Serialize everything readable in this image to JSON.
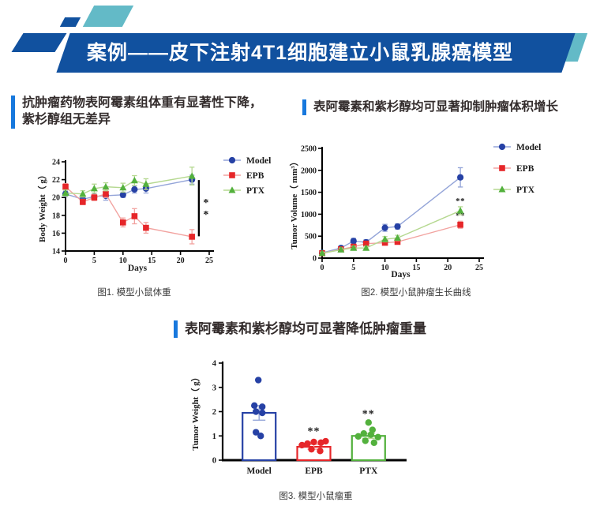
{
  "header": {
    "title": "案例——皮下注射4T1细胞建立小鼠乳腺癌模型",
    "banner_color": "#11519f",
    "accent_teal": "#63bac7",
    "section_bar_color": "#1778dd"
  },
  "sections": {
    "left": {
      "title": "抗肿瘤药物表阿霉素组体重有显著性下降，紫杉醇组无差异",
      "caption": "图1. 模型小鼠体重"
    },
    "right": {
      "title": "表阿霉素和紫杉醇均可显著抑制肿瘤体积增长",
      "caption": "图2. 模型小鼠肿瘤生长曲线"
    },
    "bottom": {
      "title": "表阿霉素和紫杉醇均可显著降低肿瘤重量",
      "caption": "图3. 模型小鼠瘤重"
    }
  },
  "chart_data": [
    {
      "type": "line",
      "xlabel": "Days",
      "ylabel": "Body Weight（ g）",
      "xlim": [
        0,
        25
      ],
      "ylim": [
        14,
        24
      ],
      "x_ticks": [
        0,
        5,
        10,
        15,
        20,
        25
      ],
      "y_ticks": [
        14,
        16,
        18,
        20,
        22,
        24
      ],
      "x": [
        0,
        3,
        5,
        7,
        10,
        12,
        14,
        22
      ],
      "legend_position": "top-right",
      "series": [
        {
          "name": "Model",
          "marker": "circle",
          "marker_color": "#2641a5",
          "line_color": "#93a4d8",
          "values": [
            20.4,
            19.8,
            20.1,
            20.2,
            20.3,
            20.9,
            21.0,
            22.0
          ],
          "errors": [
            0.3,
            0.4,
            0.4,
            0.5,
            0.3,
            0.4,
            0.5,
            0.5
          ]
        },
        {
          "name": "EPB",
          "marker": "square",
          "marker_color": "#e62629",
          "line_color": "#f2a3a0",
          "values": [
            21.2,
            19.5,
            20.0,
            20.4,
            17.2,
            17.9,
            16.6,
            15.6
          ],
          "errors": [
            0.35,
            0.3,
            0.35,
            0.4,
            0.5,
            0.85,
            0.6,
            0.8
          ]
        },
        {
          "name": "PTX",
          "marker": "triangle",
          "marker_color": "#53b13d",
          "line_color": "#b5d890",
          "values": [
            20.5,
            20.4,
            21.0,
            21.2,
            21.1,
            21.9,
            21.5,
            22.4
          ],
          "errors": [
            0.35,
            0.35,
            0.5,
            0.45,
            0.5,
            0.55,
            0.6,
            1.0
          ]
        }
      ],
      "annotation": {
        "type": "significance-bracket",
        "x": 23.2,
        "y1": 21.95,
        "y2": 15.65,
        "label": "**"
      }
    },
    {
      "type": "line",
      "xlabel": "Days",
      "ylabel": "Tumor Volume（ mm³）",
      "xlim": [
        0,
        25
      ],
      "ylim": [
        0,
        2500
      ],
      "x_ticks": [
        0,
        5,
        10,
        15,
        20,
        25
      ],
      "y_ticks": [
        0,
        500,
        1000,
        1500,
        2000,
        2500
      ],
      "x": [
        0,
        3,
        5,
        7,
        10,
        12,
        22
      ],
      "legend_position": "top-right",
      "series": [
        {
          "name": "Model",
          "marker": "circle",
          "marker_color": "#2641a5",
          "line_color": "#93a4d8",
          "values": [
            120,
            230,
            390,
            360,
            690,
            720,
            1840
          ],
          "errors": [
            40,
            50,
            60,
            60,
            80,
            60,
            220
          ],
          "sig_label": ""
        },
        {
          "name": "EPB",
          "marker": "square",
          "marker_color": "#e62629",
          "line_color": "#f2a3a0",
          "values": [
            110,
            200,
            260,
            330,
            350,
            370,
            760
          ],
          "errors": [
            30,
            40,
            50,
            50,
            50,
            50,
            80
          ],
          "sig_label": "**"
        },
        {
          "name": "PTX",
          "marker": "triangle",
          "marker_color": "#53b13d",
          "line_color": "#b5d890",
          "values": [
            110,
            190,
            230,
            230,
            430,
            460,
            1080
          ],
          "errors": [
            30,
            40,
            40,
            40,
            60,
            60,
            90
          ],
          "sig_label": "**"
        }
      ]
    },
    {
      "type": "bar-scatter",
      "ylabel": "Tumor Weight（ g）",
      "ylim": [
        0,
        4
      ],
      "y_ticks": [
        0,
        1,
        2,
        3,
        4
      ],
      "categories": [
        "Model",
        "EPB",
        "PTX"
      ],
      "bar_values": [
        1.95,
        0.55,
        1.0
      ],
      "bar_errors": [
        0.3,
        0.1,
        0.1
      ],
      "bar_colors": [
        "#2641a5",
        "#e62629",
        "#53b13d"
      ],
      "error_colors": [
        "#93a4d8",
        "#f2a3a0",
        "#b5d890"
      ],
      "points": [
        [
          [
            3.3,
            -1
          ],
          [
            2.25,
            -6
          ],
          [
            2.2,
            4
          ],
          [
            2.0,
            -4
          ],
          [
            1.95,
            4
          ],
          [
            1.15,
            -4
          ],
          [
            1.0,
            2
          ]
        ],
        [
          [
            0.62,
            -15
          ],
          [
            0.68,
            -8
          ],
          [
            0.75,
            0
          ],
          [
            0.72,
            9
          ],
          [
            0.78,
            15
          ],
          [
            0.45,
            -3
          ],
          [
            0.38,
            8
          ]
        ],
        [
          [
            1.55,
            0
          ],
          [
            1.25,
            5
          ],
          [
            1.1,
            -6
          ],
          [
            1.05,
            3
          ],
          [
            0.98,
            -13
          ],
          [
            0.95,
            12
          ],
          [
            0.8,
            -4
          ],
          [
            0.72,
            7
          ]
        ]
      ],
      "sig_labels": [
        "",
        "**",
        "**"
      ],
      "sig_y": [
        0,
        1.05,
        1.78
      ]
    }
  ]
}
